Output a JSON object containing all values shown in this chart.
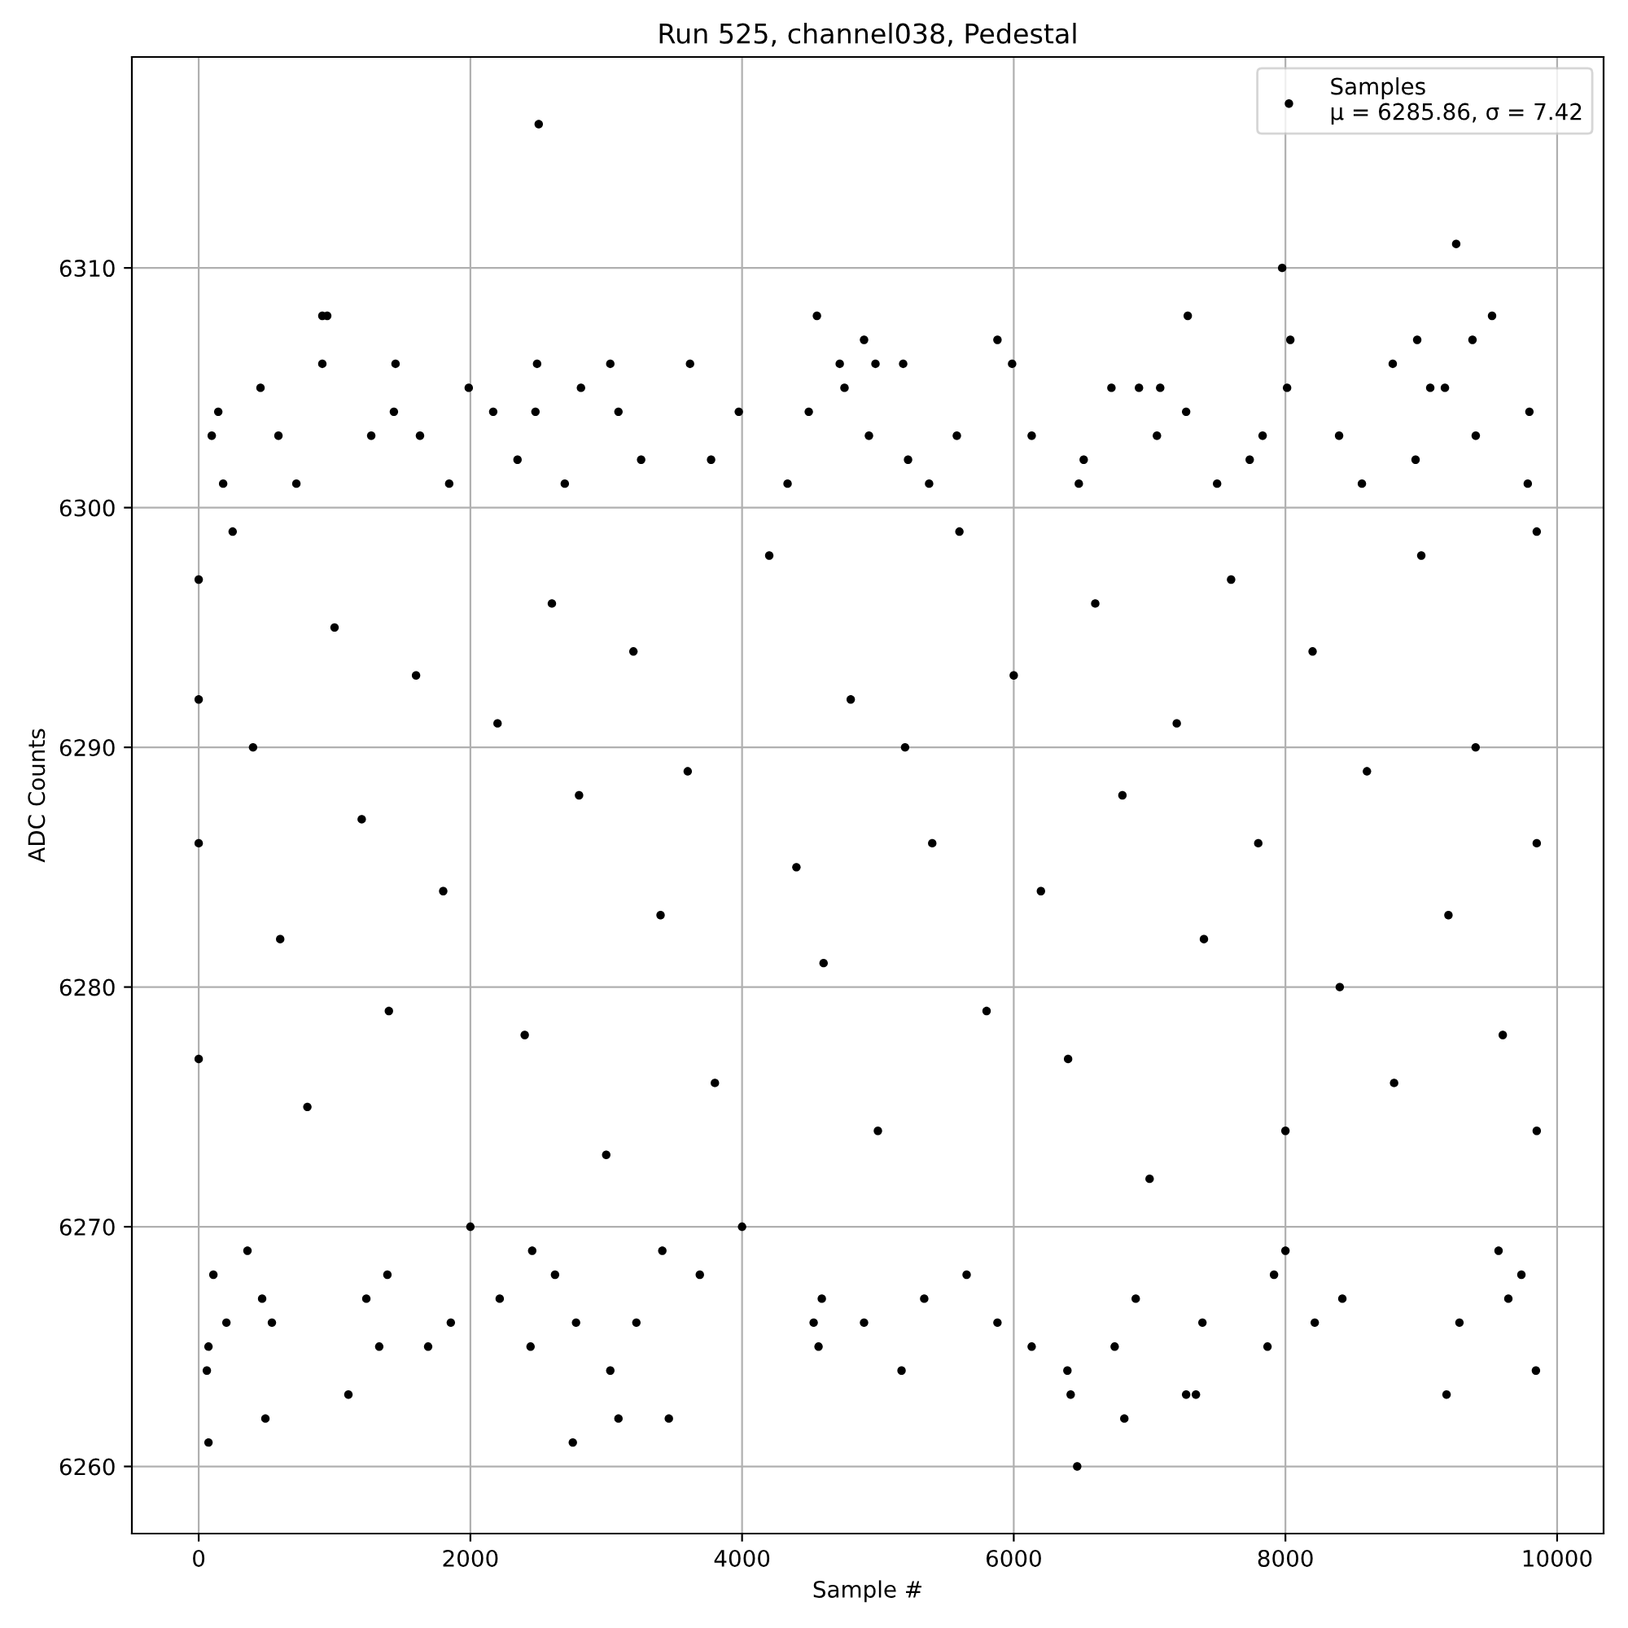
{
  "chart_data": {
    "type": "scatter",
    "title": "Run 525, channel038, Pedestal",
    "xlabel": "Sample #",
    "ylabel": "ADC Counts",
    "xlim": [
      -492,
      10342
    ],
    "ylim": [
      6257.2,
      6318.8
    ],
    "xticks": [
      0,
      2000,
      4000,
      6000,
      8000,
      10000
    ],
    "yticks": [
      6260,
      6270,
      6280,
      6290,
      6300,
      6310
    ],
    "grid": true,
    "legend": "top right",
    "marker": "circle",
    "series": [
      {
        "name": "Samples\nμ = 6285.86, σ = 7.42",
        "color": "#000000",
        "x": [
          2503,
          910,
          946,
          4551,
          7281,
          9521,
          9257,
          7976,
          4898,
          5880,
          8036,
          9377,
          8970,
          910,
          1449,
          2491,
          3030,
          3617,
          4719,
          4982,
          5186,
          5988,
          8790,
          455,
          1988,
          2814,
          4754,
          6719,
          6922,
          7078,
          8012,
          9066,
          9174,
          144,
          1437,
          2168,
          2479,
          3090,
          3976,
          4491,
          7269,
          9796,
          96,
          587,
          1270,
          1629,
          4934,
          5581,
          6132,
          7054,
          7832,
          8395,
          9401,
          2347,
          3257,
          3772,
          5222,
          6515,
          7737,
          8958,
          180,
          719,
          1844,
          2695,
          4335,
          5377,
          6479,
          7497,
          8563,
          9784,
          6467,
          72,
          2754,
          491,
          3090,
          3461,
          6814,
          1102,
          6419,
          7269,
          7341,
          9186,
          60,
          3030,
          5174,
          6395,
          9844,
          72,
          1329,
          1689,
          2443,
          4563,
          6132,
          6743,
          7868,
          204,
          539,
          1856,
          2778,
          3222,
          4527,
          4898,
          5880,
          7389,
          8216,
          9281,
          467,
          1234,
          2216,
          4587,
          5341,
          6898,
          8419,
          9641,
          108,
          1389,
          2623,
          3689,
          5653,
          7916,
          9737,
          359,
          2455,
          3413,
          8000,
          9569,
          0,
          0,
          0,
          0,
          250,
          400,
          600,
          800,
          1000,
          1200,
          1400,
          1600,
          1800,
          2000,
          2200,
          2400,
          2600,
          2800,
          3000,
          3200,
          3400,
          3600,
          3800,
          4000,
          4200,
          4400,
          4600,
          4800,
          5000,
          5200,
          5400,
          5600,
          5800,
          6000,
          6200,
          6400,
          6600,
          6800,
          7000,
          7200,
          7400,
          7600,
          7800,
          8000,
          8200,
          8400,
          8600,
          8800,
          9000,
          9200,
          9400,
          9600,
          9850,
          9850,
          9850
        ],
        "values": [
          6316,
          6308,
          6308,
          6308,
          6308,
          6308,
          6311,
          6310,
          6307,
          6307,
          6307,
          6307,
          6307,
          6306,
          6306,
          6306,
          6306,
          6306,
          6306,
          6306,
          6306,
          6306,
          6306,
          6305,
          6305,
          6305,
          6305,
          6305,
          6305,
          6305,
          6305,
          6305,
          6305,
          6304,
          6304,
          6304,
          6304,
          6304,
          6304,
          6304,
          6304,
          6304,
          6303,
          6303,
          6303,
          6303,
          6303,
          6303,
          6303,
          6303,
          6303,
          6303,
          6303,
          6302,
          6302,
          6302,
          6302,
          6302,
          6302,
          6302,
          6301,
          6301,
          6301,
          6301,
          6301,
          6301,
          6301,
          6301,
          6301,
          6301,
          6260,
          6261,
          6261,
          6262,
          6262,
          6262,
          6262,
          6263,
          6263,
          6263,
          6263,
          6263,
          6264,
          6264,
          6264,
          6264,
          6264,
          6265,
          6265,
          6265,
          6265,
          6265,
          6265,
          6265,
          6265,
          6266,
          6266,
          6266,
          6266,
          6266,
          6266,
          6266,
          6266,
          6266,
          6266,
          6266,
          6267,
          6267,
          6267,
          6267,
          6267,
          6267,
          6267,
          6267,
          6268,
          6268,
          6268,
          6268,
          6268,
          6268,
          6268,
          6269,
          6269,
          6269,
          6269,
          6269,
          6286,
          6297,
          6277,
          6292,
          6299,
          6290,
          6282,
          6275,
          6295,
          6287,
          6279,
          6293,
          6284,
          6270,
          6291,
          6278,
          6296,
          6288,
          6273,
          6294,
          6283,
          6289,
          6276,
          6270,
          6298,
          6285,
          6281,
          6292,
          6274,
          6290,
          6286,
          6299,
          6279,
          6293,
          6284,
          6277,
          6296,
          6288,
          6272,
          6291,
          6282,
          6297,
          6286,
          6274,
          6294,
          6280,
          6289,
          6276,
          6298,
          6283,
          6290,
          6278,
          6299,
          6274,
          6286
        ]
      }
    ]
  }
}
